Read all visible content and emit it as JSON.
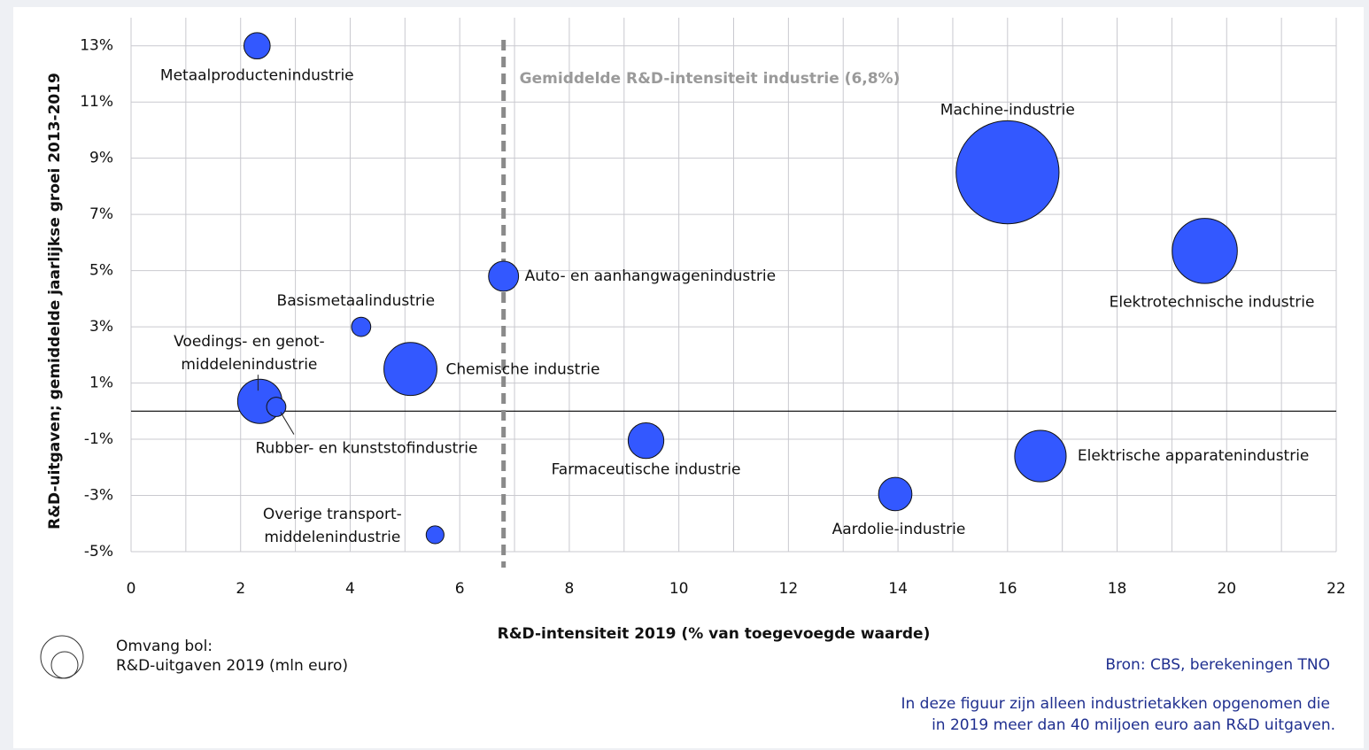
{
  "chart_data": {
    "type": "bubble",
    "x_label": "R&D-intensiteit 2019 (% van toegevoegde waarde)",
    "y_label": "R&D-uitgaven; gemiddelde jaarlijkse groei 2013-2019",
    "categories": [
      "Metaalproductenindustrie",
      "Machine-industrie",
      "Elektrotechnische industrie",
      "Auto- en aanhangwagenindustrie",
      "Basismetaalindustrie",
      "Chemische industrie",
      "Voedings- en genot-\nmiddelenindustrie",
      "Rubber- en kunststofindustrie",
      "Farmaceutische industrie",
      "Elektrische apparatenindustrie",
      "Aardolie-industrie",
      "Overige transport-\nmiddelenindustrie"
    ],
    "x": [
      2.3,
      16.0,
      19.6,
      6.8,
      4.2,
      5.1,
      2.35,
      2.65,
      9.4,
      16.6,
      13.95,
      5.55
    ],
    "values": [
      13.0,
      8.5,
      5.7,
      4.8,
      3.0,
      1.5,
      0.35,
      0.15,
      -1.05,
      -1.6,
      -2.95,
      -4.4
    ],
    "sizes": [
      130,
      2000,
      800,
      170,
      70,
      530,
      370,
      70,
      240,
      500,
      210,
      60
    ],
    "color": "#3358ff",
    "xlim": [
      0,
      22
    ],
    "xticks": [
      0,
      2,
      4,
      6,
      8,
      10,
      12,
      14,
      16,
      18,
      20,
      22
    ],
    "ylim": [
      -5,
      14
    ],
    "yticks": [
      {
        "value": -5,
        "label": "-5%"
      },
      {
        "value": -3,
        "label": "-3%"
      },
      {
        "value": -1,
        "label": "-1%"
      },
      {
        "value": 1,
        "label": "1%"
      },
      {
        "value": 3,
        "label": "3%"
      },
      {
        "value": 5,
        "label": "5%"
      },
      {
        "value": 7,
        "label": "7%"
      },
      {
        "value": 9,
        "label": "9%"
      },
      {
        "value": 11,
        "label": "11%"
      },
      {
        "value": 13,
        "label": "13%"
      }
    ],
    "grid": true,
    "minor_grid": true,
    "reference_line": {
      "value": 6.8,
      "label": "Gemiddelde R&D-intensiteit industrie (6,8%)"
    },
    "size_legend": [
      "Omvang bol:",
      "R&D-uitgaven 2019 (mln euro)"
    ],
    "source": "Bron: CBS, berekeningen TNO",
    "note": [
      "In deze figuur zijn alleen industrietakken opgenomen die",
      "in 2019 meer dan 40 miljoen euro aan R&D uitgaven."
    ]
  }
}
